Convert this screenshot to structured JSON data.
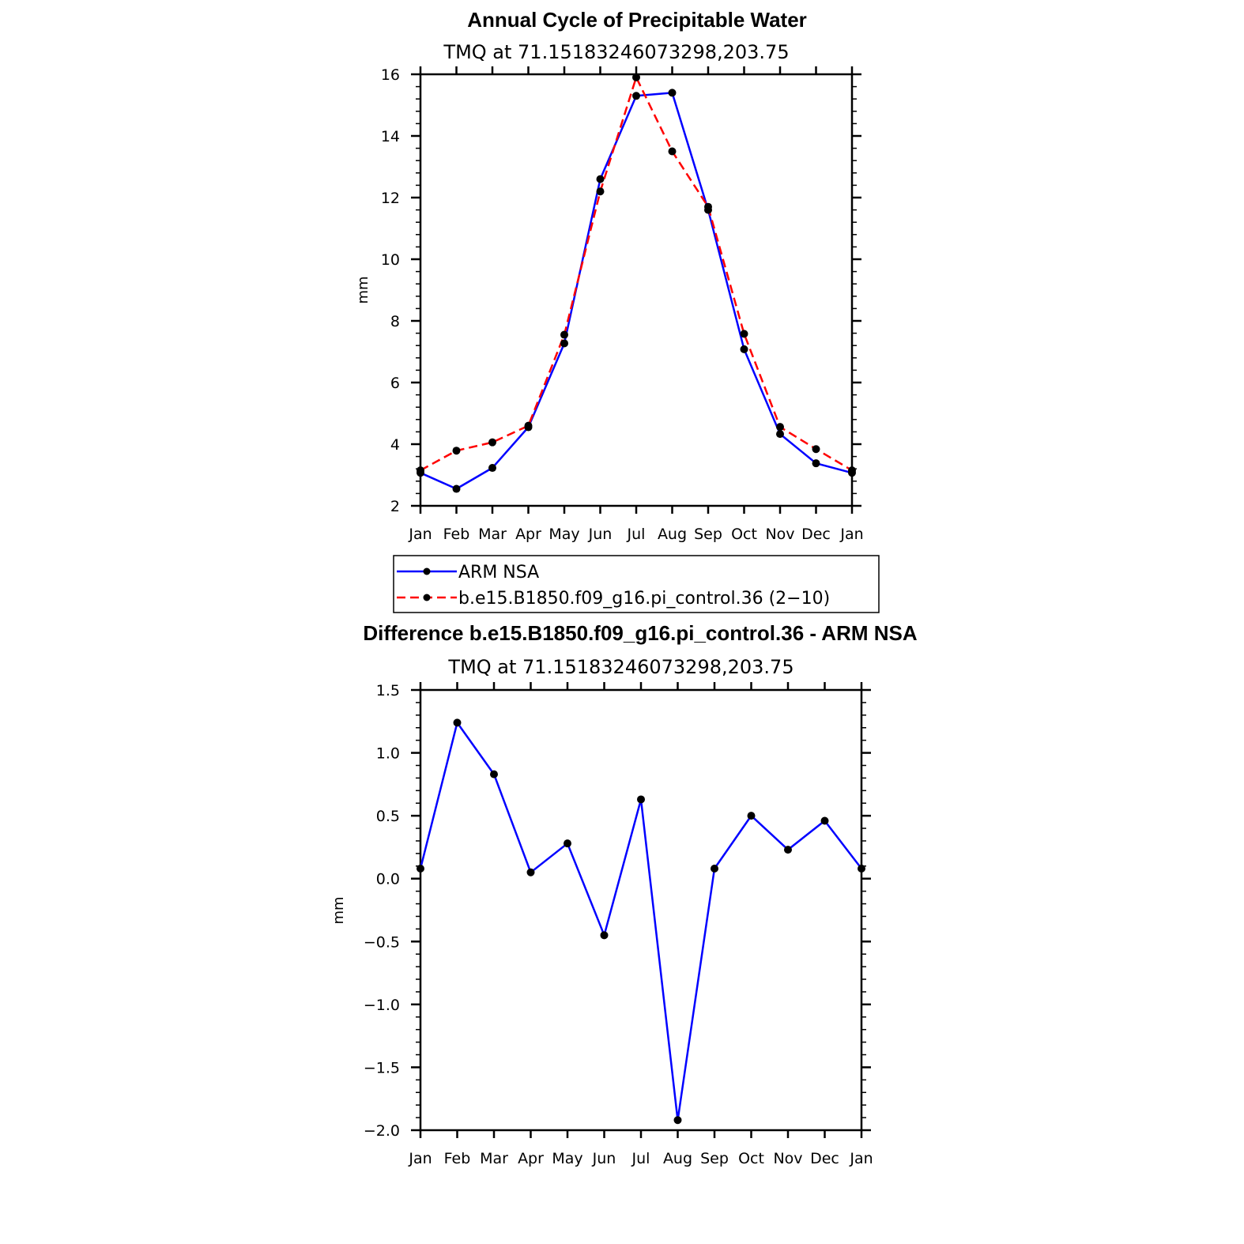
{
  "colors": {
    "obs": "#0000ff",
    "model": "#ff0000",
    "marker": "#000000"
  },
  "chart_data": [
    {
      "type": "line",
      "title": "Annual Cycle of Precipitable Water",
      "subtitle": "TMQ at 71.15183246073298,203.75",
      "xlabel": "",
      "ylabel": "mm",
      "categories": [
        "Jan",
        "Feb",
        "Mar",
        "Apr",
        "May",
        "Jun",
        "Jul",
        "Aug",
        "Sep",
        "Oct",
        "Nov",
        "Dec",
        "Jan"
      ],
      "ylim": [
        2,
        16
      ],
      "yticks": [
        "2",
        "4",
        "6",
        "8",
        "10",
        "12",
        "14",
        "16"
      ],
      "grid": false,
      "legend_placement": "below",
      "series": [
        {
          "name": "ARM NSA",
          "style": "solid",
          "values": [
            3.07,
            2.55,
            3.23,
            4.55,
            7.27,
            12.6,
            15.3,
            15.4,
            11.6,
            7.08,
            4.33,
            3.38,
            3.07
          ]
        },
        {
          "name": "b.e15.B1850.f09_g16.pi_control.36 (2−10)",
          "style": "dashed",
          "values": [
            3.15,
            3.79,
            4.06,
            4.6,
            7.55,
            12.2,
            15.9,
            13.5,
            11.7,
            7.58,
            4.56,
            3.84,
            3.15
          ]
        }
      ]
    },
    {
      "type": "line",
      "title": "Difference b.e15.B1850.f09_g16.pi_control.36 - ARM NSA",
      "subtitle": "TMQ at 71.15183246073298,203.75",
      "xlabel": "",
      "ylabel": "mm",
      "categories": [
        "Jan",
        "Feb",
        "Mar",
        "Apr",
        "May",
        "Jun",
        "Jul",
        "Aug",
        "Sep",
        "Oct",
        "Nov",
        "Dec",
        "Jan"
      ],
      "ylim": [
        -2.0,
        1.5
      ],
      "yticks": [
        "−2.0",
        "−1.5",
        "−1.0",
        "−0.5",
        "0.0",
        "0.5",
        "1.0",
        "1.5"
      ],
      "grid": false,
      "series": [
        {
          "style": "solid",
          "values": [
            0.08,
            1.24,
            0.83,
            0.05,
            0.28,
            -0.45,
            0.63,
            -1.92,
            0.08,
            0.5,
            0.23,
            0.46,
            0.08
          ]
        }
      ]
    }
  ]
}
